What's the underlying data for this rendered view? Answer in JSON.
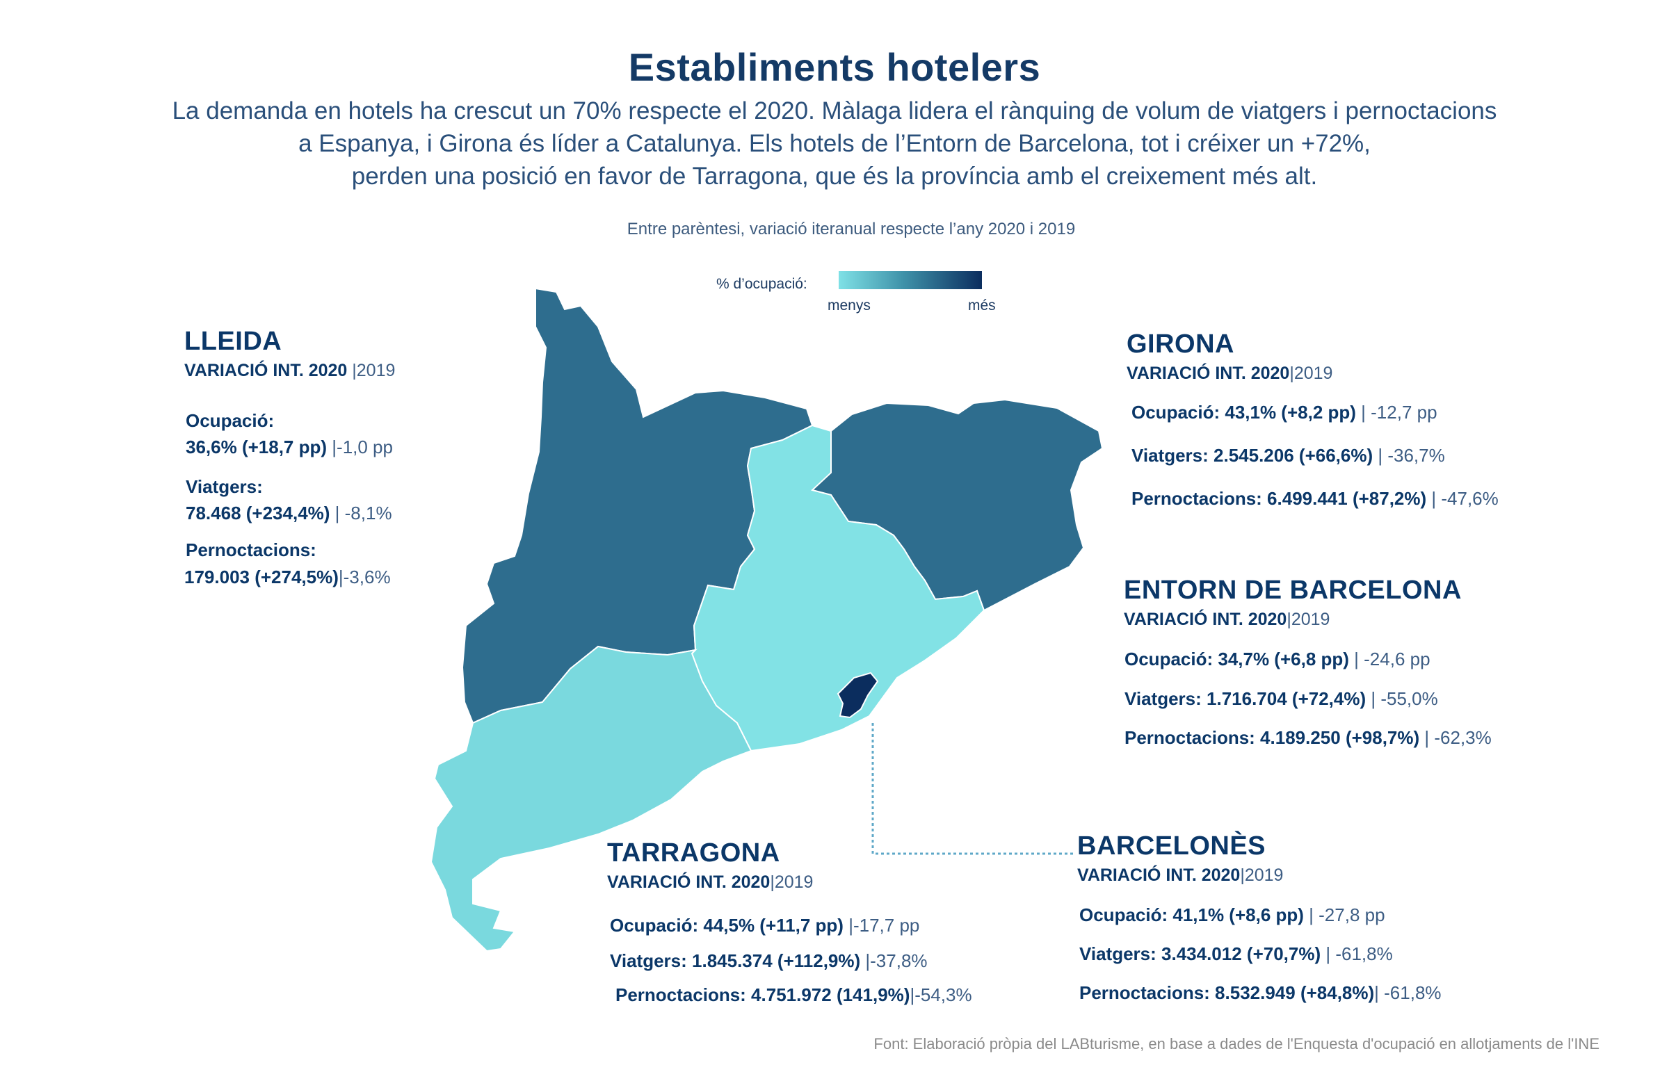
{
  "title": "Establiments hotelers",
  "subtitle": [
    "La demanda en hotels ha crescut un 70% respecte el 2020. Màlaga lidera el rànquing de volum de viatgers i pernoctacions",
    "a Espanya, i Girona és líder a Catalunya. Els hotels de l’Entorn de Barcelona, tot i créixer un +72%,",
    "perden una posició en favor de Tarragona, que és la província amb el creixement més alt."
  ],
  "note": "Entre parèntesi, variació iteranual respecte l’any 2020 i 2019",
  "legend": {
    "label": "% d’ocupació:",
    "min_label": "menys",
    "max_label": "més",
    "colors": [
      "#7fe1e6",
      "#0b2d5e"
    ]
  },
  "header_sub": {
    "bold": "VARIACIÓ INT. 2020",
    "light": "|2019"
  },
  "regions": {
    "lleida": {
      "name": "LLEIDA",
      "color": "#2e6d8e",
      "ocupacio_label": "Ocupació:",
      "ocupacio_value": "36,6% (+18,7 pp)",
      "ocupacio_2019": "|-1,0 pp",
      "viatgers_label": "Viatgers:",
      "viatgers_value": "78.468 (+234,4%)",
      "viatgers_2019": "| -8,1%",
      "pernoctacions_label": "Pernoctacions:",
      "pernoctacions_value": "179.003 (+274,5%)",
      "pernoctacions_2019": "|-3,6%"
    },
    "girona": {
      "name": "GIRONA",
      "color": "#2e6d8e",
      "ocupacio": "Ocupació: 43,1% (+8,2 pp)",
      "ocupacio_2019": "| -12,7 pp",
      "viatgers": "Viatgers: 2.545.206 (+66,6%)",
      "viatgers_2019": "| -36,7%",
      "pernoctacions": "Pernoctacions: 6.499.441 (+87,2%)",
      "pernoctacions_2019": "| -47,6%"
    },
    "entorn": {
      "name": "ENTORN DE BARCELONA",
      "color": "#82e2e5",
      "ocupacio": "Ocupació: 34,7% (+6,8 pp)",
      "ocupacio_2019": "| -24,6 pp",
      "viatgers": "Viatgers: 1.716.704 (+72,4%)",
      "viatgers_2019": "| -55,0%",
      "pernoctacions": "Pernoctacions: 4.189.250 (+98,7%)",
      "pernoctacions_2019": "| -62,3%"
    },
    "tarragona": {
      "name": "TARRAGONA",
      "color": "#7ad9de",
      "ocupacio": "Ocupació: 44,5% (+11,7 pp)",
      "ocupacio_2019": "|-17,7 pp",
      "viatgers": "Viatgers: 1.845.374 (+112,9%)",
      "viatgers_2019": "|-37,8%",
      "pernoctacions": "Pernoctacions: 4.751.972 (141,9%)",
      "pernoctacions_2019": "|-54,3%"
    },
    "barcelones": {
      "name": "BARCELONÈS",
      "color": "#0b2d5e",
      "ocupacio": "Ocupació: 41,1% (+8,6 pp)",
      "ocupacio_2019": "| -27,8 pp",
      "viatgers": "Viatgers: 3.434.012 (+70,7%)",
      "viatgers_2019": "| -61,8%",
      "pernoctacions": "Pernoctacions: 8.532.949 (+84,8%)",
      "pernoctacions_2019": "| -61,8%"
    }
  },
  "source": "Font: Elaboració pròpia del LABturisme, en base a dades de l'Enquesta d'ocupació en allotjaments de l'INE"
}
